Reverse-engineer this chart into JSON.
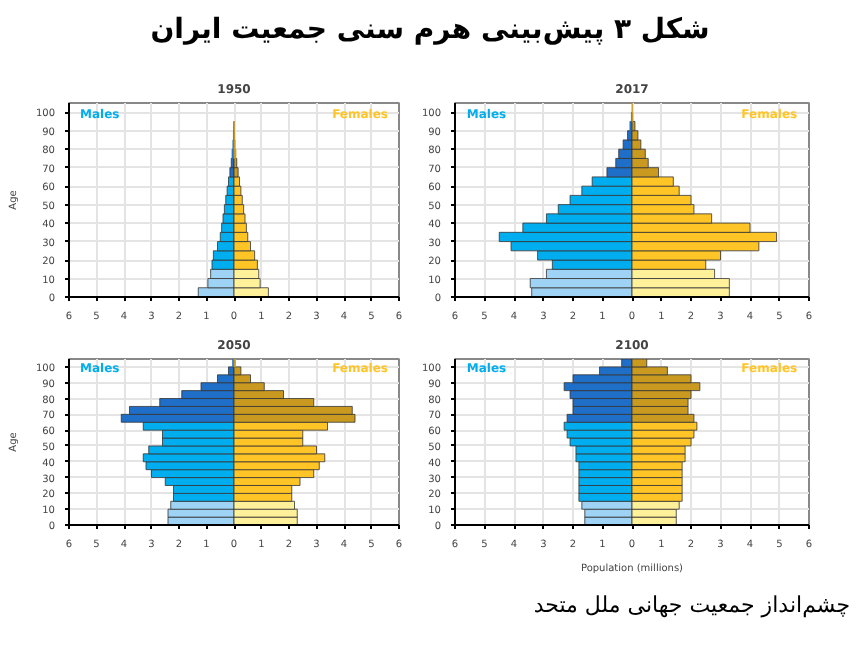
{
  "chart_data": [
    {
      "type": "other",
      "title": "شکل ۳ پیش‌بینی هرم سنی جمعیت ایران",
      "annotations": [
        "چشم‌انداز جمعیت جهانی ملل متحد"
      ]
    },
    {
      "type": "bar",
      "stacked": true,
      "orientation": "horizontal",
      "title": "1950",
      "ylabel": "Age",
      "x": [
        2.5,
        7.5,
        12.5,
        17.5,
        22.5,
        27.5,
        32.5,
        37.5,
        42.5,
        47.5,
        52.5,
        57.5,
        62.5,
        67.5,
        72.5,
        77.5,
        82.5,
        87.5,
        92.5,
        97.5,
        102.5
      ],
      "xlim": [
        -6,
        6
      ],
      "xticks": [
        {
          "value": -6,
          "label": "6"
        },
        {
          "value": -5,
          "label": "5"
        },
        {
          "value": -4,
          "label": "4"
        },
        {
          "value": -3,
          "label": "3"
        },
        {
          "value": -2,
          "label": "2"
        },
        {
          "value": -1,
          "label": "1"
        },
        0,
        1,
        2,
        3,
        4,
        5,
        6
      ],
      "ylim": [
        0,
        105
      ],
      "yticks": [
        0,
        10,
        20,
        30,
        40,
        50,
        60,
        70,
        80,
        90,
        100
      ],
      "grid": true,
      "series": [
        {
          "name": "Males",
          "colors": [
            "#9fd3f5",
            "#9fd3f5",
            "#9fd3f5",
            "#00aeef",
            "#00aeef",
            "#00aeef",
            "#00aeef",
            "#00aeef",
            "#00aeef",
            "#00aeef",
            "#00aeef",
            "#00aeef",
            "#00aeef",
            "#1f6fc9",
            "#1f6fc9",
            "#1f6fc9",
            "#1f6fc9",
            "#1f6fc9",
            "#1f6fc9",
            "#1f6fc9",
            "#1f6fc9"
          ],
          "values": [
            -1.3,
            -0.95,
            -0.85,
            -0.8,
            -0.75,
            -0.6,
            -0.5,
            -0.45,
            -0.4,
            -0.35,
            -0.3,
            -0.25,
            -0.2,
            -0.15,
            -0.1,
            -0.07,
            -0.04,
            -0.02,
            -0.01,
            0,
            0
          ]
        },
        {
          "name": "Females",
          "colors": [
            "#fff19a",
            "#fff19a",
            "#fff19a",
            "#ffc425",
            "#ffc425",
            "#ffc425",
            "#ffc425",
            "#ffc425",
            "#ffc425",
            "#ffc425",
            "#ffc425",
            "#ffc425",
            "#ffc425",
            "#c99a1f",
            "#c99a1f",
            "#c99a1f",
            "#c99a1f",
            "#c99a1f",
            "#c99a1f",
            "#c99a1f",
            "#c99a1f"
          ],
          "values": [
            1.25,
            0.95,
            0.9,
            0.85,
            0.75,
            0.6,
            0.5,
            0.45,
            0.4,
            0.35,
            0.3,
            0.25,
            0.2,
            0.15,
            0.1,
            0.07,
            0.04,
            0.02,
            0.01,
            0,
            0
          ]
        }
      ]
    },
    {
      "type": "bar",
      "stacked": true,
      "orientation": "horizontal",
      "title": "2017",
      "x": [
        2.5,
        7.5,
        12.5,
        17.5,
        22.5,
        27.5,
        32.5,
        37.5,
        42.5,
        47.5,
        52.5,
        57.5,
        62.5,
        67.5,
        72.5,
        77.5,
        82.5,
        87.5,
        92.5,
        97.5,
        102.5
      ],
      "xlim": [
        -6,
        6
      ],
      "xticks": [
        {
          "value": -6,
          "label": "6"
        },
        {
          "value": -5,
          "label": "5"
        },
        {
          "value": -4,
          "label": "4"
        },
        {
          "value": -3,
          "label": "3"
        },
        {
          "value": -2,
          "label": "2"
        },
        {
          "value": -1,
          "label": "1"
        },
        0,
        1,
        2,
        3,
        4,
        5,
        6
      ],
      "ylim": [
        0,
        105
      ],
      "yticks": [
        0,
        10,
        20,
        30,
        40,
        50,
        60,
        70,
        80,
        90,
        100
      ],
      "grid": true,
      "series": [
        {
          "name": "Males",
          "colors": [
            "#9fd3f5",
            "#9fd3f5",
            "#9fd3f5",
            "#00aeef",
            "#00aeef",
            "#00aeef",
            "#00aeef",
            "#00aeef",
            "#00aeef",
            "#00aeef",
            "#00aeef",
            "#00aeef",
            "#00aeef",
            "#1f6fc9",
            "#1f6fc9",
            "#1f6fc9",
            "#1f6fc9",
            "#1f6fc9",
            "#1f6fc9",
            "#1f6fc9",
            "#1f6fc9"
          ],
          "values": [
            -3.4,
            -3.45,
            -2.9,
            -2.7,
            -3.2,
            -4.1,
            -4.5,
            -3.7,
            -2.9,
            -2.5,
            -2.1,
            -1.7,
            -1.35,
            -0.85,
            -0.55,
            -0.45,
            -0.3,
            -0.15,
            -0.07,
            -0.02,
            0
          ]
        },
        {
          "name": "Females",
          "colors": [
            "#fff19a",
            "#fff19a",
            "#fff19a",
            "#ffc425",
            "#ffc425",
            "#ffc425",
            "#ffc425",
            "#ffc425",
            "#ffc425",
            "#ffc425",
            "#ffc425",
            "#ffc425",
            "#ffc425",
            "#c99a1f",
            "#c99a1f",
            "#c99a1f",
            "#c99a1f",
            "#c99a1f",
            "#c99a1f",
            "#c99a1f",
            "#c99a1f"
          ],
          "values": [
            3.3,
            3.3,
            2.8,
            2.5,
            3.0,
            4.3,
            4.9,
            4.0,
            2.7,
            2.1,
            2.0,
            1.6,
            1.4,
            0.9,
            0.55,
            0.45,
            0.3,
            0.2,
            0.1,
            0.03,
            0.01
          ]
        }
      ]
    },
    {
      "type": "bar",
      "stacked": true,
      "orientation": "horizontal",
      "title": "2050",
      "ylabel": "Age",
      "x": [
        2.5,
        7.5,
        12.5,
        17.5,
        22.5,
        27.5,
        32.5,
        37.5,
        42.5,
        47.5,
        52.5,
        57.5,
        62.5,
        67.5,
        72.5,
        77.5,
        82.5,
        87.5,
        92.5,
        97.5,
        102.5
      ],
      "xlim": [
        -6,
        6
      ],
      "xticks": [
        {
          "value": -6,
          "label": "6"
        },
        {
          "value": -5,
          "label": "5"
        },
        {
          "value": -4,
          "label": "4"
        },
        {
          "value": -3,
          "label": "3"
        },
        {
          "value": -2,
          "label": "2"
        },
        {
          "value": -1,
          "label": "1"
        },
        0,
        1,
        2,
        3,
        4,
        5,
        6
      ],
      "ylim": [
        0,
        105
      ],
      "yticks": [
        0,
        10,
        20,
        30,
        40,
        50,
        60,
        70,
        80,
        90,
        100
      ],
      "grid": true,
      "series": [
        {
          "name": "Males",
          "colors": [
            "#9fd3f5",
            "#9fd3f5",
            "#9fd3f5",
            "#00aeef",
            "#00aeef",
            "#00aeef",
            "#00aeef",
            "#00aeef",
            "#00aeef",
            "#00aeef",
            "#00aeef",
            "#00aeef",
            "#00aeef",
            "#1f6fc9",
            "#1f6fc9",
            "#1f6fc9",
            "#1f6fc9",
            "#1f6fc9",
            "#1f6fc9",
            "#1f6fc9",
            "#1f6fc9"
          ],
          "values": [
            -2.4,
            -2.4,
            -2.3,
            -2.2,
            -2.2,
            -2.5,
            -3.0,
            -3.2,
            -3.3,
            -3.1,
            -2.6,
            -2.6,
            -3.3,
            -4.1,
            -3.8,
            -2.7,
            -1.9,
            -1.2,
            -0.6,
            -0.2,
            -0.05
          ]
        },
        {
          "name": "Females",
          "colors": [
            "#fff19a",
            "#fff19a",
            "#fff19a",
            "#ffc425",
            "#ffc425",
            "#ffc425",
            "#ffc425",
            "#ffc425",
            "#ffc425",
            "#ffc425",
            "#ffc425",
            "#ffc425",
            "#ffc425",
            "#c99a1f",
            "#c99a1f",
            "#c99a1f",
            "#c99a1f",
            "#c99a1f",
            "#c99a1f",
            "#c99a1f",
            "#c99a1f"
          ],
          "values": [
            2.3,
            2.3,
            2.2,
            2.1,
            2.1,
            2.4,
            2.9,
            3.1,
            3.3,
            3.0,
            2.5,
            2.5,
            3.4,
            4.4,
            4.3,
            2.9,
            1.8,
            1.1,
            0.6,
            0.25,
            0.05
          ]
        }
      ]
    },
    {
      "type": "bar",
      "stacked": true,
      "orientation": "horizontal",
      "title": "2100",
      "xlabel": "Population (millions)",
      "x": [
        2.5,
        7.5,
        12.5,
        17.5,
        22.5,
        27.5,
        32.5,
        37.5,
        42.5,
        47.5,
        52.5,
        57.5,
        62.5,
        67.5,
        72.5,
        77.5,
        82.5,
        87.5,
        92.5,
        97.5,
        102.5
      ],
      "xlim": [
        -6,
        6
      ],
      "xticks": [
        {
          "value": -6,
          "label": "6"
        },
        {
          "value": -5,
          "label": "5"
        },
        {
          "value": -4,
          "label": "4"
        },
        {
          "value": -3,
          "label": "3"
        },
        {
          "value": -2,
          "label": "2"
        },
        {
          "value": -1,
          "label": "1"
        },
        0,
        1,
        2,
        3,
        4,
        5,
        6
      ],
      "ylim": [
        0,
        105
      ],
      "yticks": [
        0,
        10,
        20,
        30,
        40,
        50,
        60,
        70,
        80,
        90,
        100
      ],
      "grid": true,
      "series": [
        {
          "name": "Males",
          "colors": [
            "#9fd3f5",
            "#9fd3f5",
            "#9fd3f5",
            "#00aeef",
            "#00aeef",
            "#00aeef",
            "#00aeef",
            "#00aeef",
            "#00aeef",
            "#00aeef",
            "#00aeef",
            "#00aeef",
            "#00aeef",
            "#1f6fc9",
            "#1f6fc9",
            "#1f6fc9",
            "#1f6fc9",
            "#1f6fc9",
            "#1f6fc9",
            "#1f6fc9",
            "#1f6fc9"
          ],
          "values": [
            -1.6,
            -1.6,
            -1.7,
            -1.8,
            -1.8,
            -1.8,
            -1.8,
            -1.8,
            -1.9,
            -1.9,
            -2.1,
            -2.2,
            -2.3,
            -2.2,
            -2.0,
            -2.0,
            -2.1,
            -2.3,
            -2.0,
            -1.1,
            -0.35
          ]
        },
        {
          "name": "Females",
          "colors": [
            "#fff19a",
            "#fff19a",
            "#fff19a",
            "#ffc425",
            "#ffc425",
            "#ffc425",
            "#ffc425",
            "#ffc425",
            "#ffc425",
            "#ffc425",
            "#ffc425",
            "#ffc425",
            "#ffc425",
            "#c99a1f",
            "#c99a1f",
            "#c99a1f",
            "#c99a1f",
            "#c99a1f",
            "#c99a1f",
            "#c99a1f",
            "#c99a1f"
          ],
          "values": [
            1.5,
            1.5,
            1.6,
            1.7,
            1.7,
            1.7,
            1.7,
            1.7,
            1.8,
            1.8,
            2.0,
            2.1,
            2.2,
            2.1,
            1.9,
            1.9,
            2.0,
            2.3,
            2.0,
            1.2,
            0.5
          ]
        }
      ]
    }
  ]
}
